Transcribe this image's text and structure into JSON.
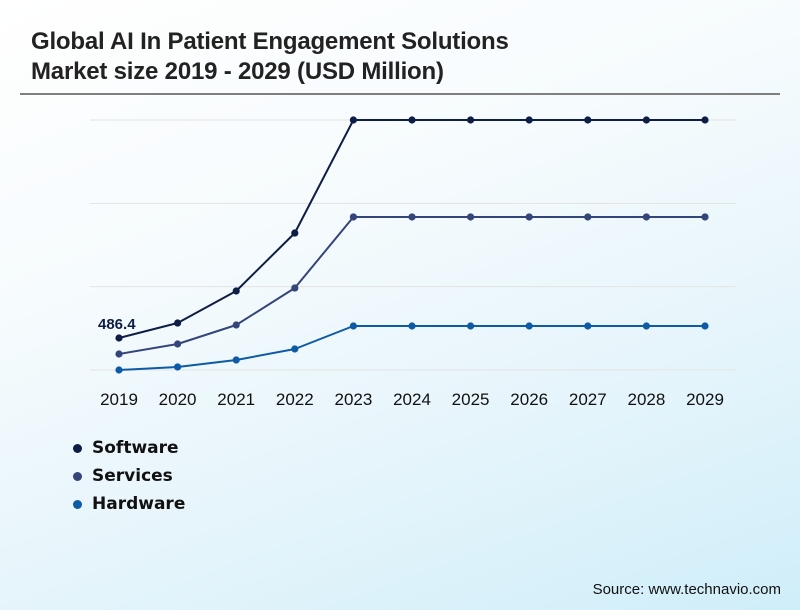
{
  "title_line1": "Global AI In Patient Engagement Solutions",
  "title_line2": "Market size 2019 - 2029 (USD Million)",
  "source": "Source: www.technavio.com",
  "colors": {
    "software": "#0e1d45",
    "services": "#34457a",
    "hardware": "#0d5aa7",
    "grid": "#e3e3e3",
    "rule": "#7f7f7f"
  },
  "chart_data": {
    "type": "line",
    "title": "Global AI In Patient Engagement Solutions Market size 2019 - 2029 (USD Million)",
    "xlabel": "",
    "ylabel": "",
    "x": [
      "2019",
      "2020",
      "2021",
      "2022",
      "2023",
      "2024",
      "2025",
      "2026",
      "2027",
      "2028",
      "2029"
    ],
    "value_note": "Only Software 2019 (486.4) is printed on the chart. The y-axis has no tick labels, so all other values are estimates derived from pixel positions, assuming the lowest gridline is 0 and scaling from the 486.4 label.",
    "series": [
      {
        "name": "Software",
        "color": "#0e1d45",
        "values": [
          486.4,
          714,
          1201,
          2082,
          3800,
          3800,
          3800,
          3800,
          3800,
          3800,
          3800
        ],
        "estimated": [
          false,
          true,
          true,
          true,
          true,
          true,
          true,
          true,
          true,
          true,
          true
        ]
      },
      {
        "name": "Services",
        "color": "#34457a",
        "values": [
          243,
          395,
          684,
          1246,
          2326,
          2326,
          2326,
          2326,
          2326,
          2326,
          2326
        ],
        "estimated": [
          true,
          true,
          true,
          true,
          true,
          true,
          true,
          true,
          true,
          true,
          true
        ]
      },
      {
        "name": "Hardware",
        "color": "#0d5aa7",
        "values": [
          0,
          46,
          152,
          319,
          669,
          669,
          669,
          669,
          669,
          669,
          669
        ],
        "estimated": [
          true,
          true,
          true,
          true,
          true,
          true,
          true,
          true,
          true,
          true,
          true
        ]
      }
    ],
    "annotations": [
      {
        "series": "Software",
        "x": "2019",
        "text": "486.4"
      }
    ],
    "ylim": [
      0,
      3800
    ],
    "y_axis_labeled": false,
    "grid": true,
    "legend": "bottom-left"
  }
}
